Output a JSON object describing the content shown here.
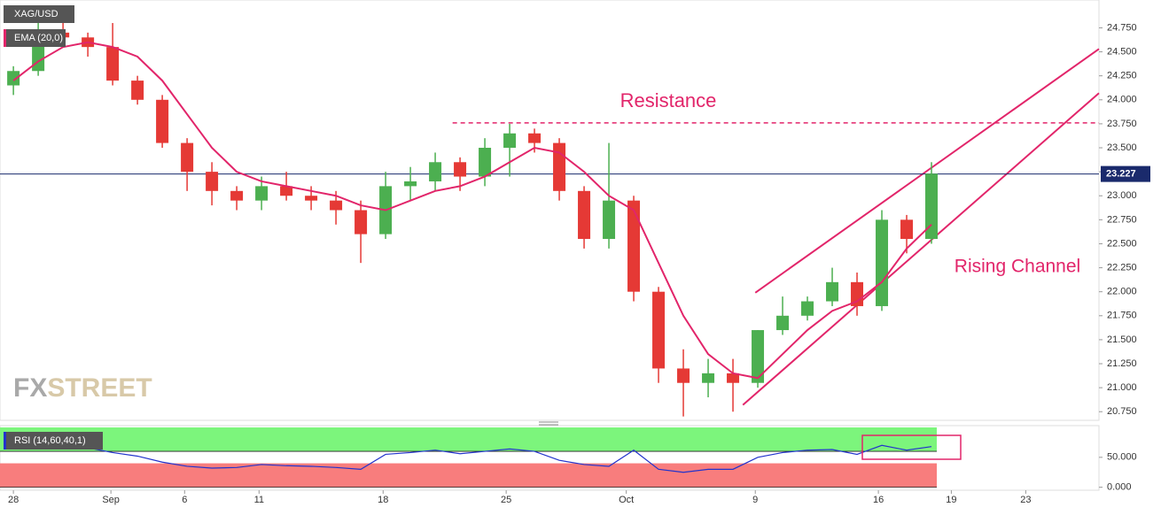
{
  "chart_data": [
    {
      "type": "candlestick",
      "name": "XAG/USD",
      "x": [
        0,
        1,
        2,
        3,
        4,
        5,
        6,
        7,
        8,
        9,
        10,
        11,
        12,
        13,
        14,
        15,
        16,
        17,
        18,
        19,
        20,
        21,
        22,
        23,
        24,
        25,
        26,
        27,
        28,
        29,
        30,
        31,
        32,
        33,
        34,
        35,
        36,
        37
      ],
      "open": [
        24.15,
        24.3,
        24.7,
        24.65,
        24.55,
        24.2,
        24.0,
        23.55,
        23.25,
        23.05,
        22.95,
        23.1,
        23.0,
        22.95,
        22.85,
        22.6,
        23.1,
        23.15,
        23.35,
        23.2,
        23.5,
        23.65,
        23.55,
        23.05,
        22.55,
        22.95,
        22.0,
        21.2,
        21.05,
        21.15,
        21.05,
        21.6,
        21.75,
        21.9,
        22.1,
        21.85,
        22.75,
        22.55
      ],
      "high": [
        24.35,
        24.8,
        24.95,
        24.7,
        24.8,
        24.25,
        24.05,
        23.6,
        23.35,
        23.1,
        23.2,
        23.25,
        23.1,
        23.05,
        22.95,
        23.25,
        23.3,
        23.45,
        23.4,
        23.6,
        23.75,
        23.7,
        23.6,
        23.1,
        23.55,
        23.0,
        22.05,
        21.4,
        21.3,
        21.3,
        21.6,
        21.95,
        21.95,
        22.25,
        22.2,
        22.85,
        22.8,
        23.35
      ],
      "low": [
        24.05,
        24.25,
        24.55,
        24.45,
        24.15,
        23.95,
        23.5,
        23.05,
        22.9,
        22.85,
        22.85,
        22.95,
        22.85,
        22.7,
        22.3,
        22.55,
        22.95,
        23.05,
        23.05,
        23.1,
        23.2,
        23.45,
        22.95,
        22.45,
        22.45,
        21.9,
        21.05,
        20.7,
        20.9,
        20.75,
        21.0,
        21.55,
        21.7,
        21.85,
        21.75,
        21.8,
        22.4,
        22.5
      ],
      "close": [
        24.3,
        24.7,
        24.65,
        24.55,
        24.2,
        24.0,
        23.55,
        23.25,
        23.05,
        22.95,
        23.1,
        23.0,
        22.95,
        22.85,
        22.6,
        23.1,
        23.15,
        23.35,
        23.2,
        23.5,
        23.65,
        23.55,
        23.05,
        22.55,
        22.95,
        22.0,
        21.2,
        21.05,
        21.15,
        21.05,
        21.6,
        21.75,
        21.9,
        22.1,
        21.85,
        22.75,
        22.55,
        23.23
      ],
      "up_color": "#4caf50",
      "down_color": "#e53935",
      "ema": {
        "name": "EMA (20,0)",
        "color": "#e2256a",
        "values": [
          24.2,
          24.4,
          24.55,
          24.6,
          24.55,
          24.45,
          24.2,
          23.85,
          23.5,
          23.25,
          23.15,
          23.1,
          23.05,
          23.0,
          22.9,
          22.85,
          22.95,
          23.05,
          23.1,
          23.2,
          23.35,
          23.5,
          23.45,
          23.25,
          23.0,
          22.85,
          22.3,
          21.75,
          21.35,
          21.15,
          21.1,
          21.35,
          21.6,
          21.8,
          21.9,
          22.1,
          22.45,
          22.7
        ]
      },
      "last_price": {
        "value": 23.227,
        "label": "23.227"
      },
      "xlim": [
        -0.54,
        43.75
      ],
      "ylim": [
        20.66,
        25.04
      ],
      "xticks": [
        {
          "value": 0,
          "label": "28"
        },
        {
          "value": 3.93,
          "label": "Sep"
        },
        {
          "value": 6.9,
          "label": "6"
        },
        {
          "value": 9.9,
          "label": "11"
        },
        {
          "value": 14.9,
          "label": "18"
        },
        {
          "value": 19.86,
          "label": "25"
        },
        {
          "value": 24.7,
          "label": "Oct"
        },
        {
          "value": 29.9,
          "label": "9"
        },
        {
          "value": 34.86,
          "label": "16"
        },
        {
          "value": 37.8,
          "label": "19"
        },
        {
          "value": 40.8,
          "label": "23"
        }
      ],
      "yticks": [
        {
          "value": 20.75,
          "label": "20.750"
        },
        {
          "value": 21,
          "label": "21.000"
        },
        {
          "value": 21.25,
          "label": "21.250"
        },
        {
          "value": 21.5,
          "label": "21.500"
        },
        {
          "value": 21.75,
          "label": "21.750"
        },
        {
          "value": 22,
          "label": "22.000"
        },
        {
          "value": 22.25,
          "label": "22.250"
        },
        {
          "value": 22.5,
          "label": "22.500"
        },
        {
          "value": 22.75,
          "label": "22.750"
        },
        {
          "value": 23,
          "label": "23.000"
        },
        {
          "value": 23.25,
          "label": "23.250"
        },
        {
          "value": 23.5,
          "label": "23.500"
        },
        {
          "value": 23.75,
          "label": "23.750"
        },
        {
          "value": 24,
          "label": "24.000"
        },
        {
          "value": 24.25,
          "label": "24.250"
        },
        {
          "value": 24.5,
          "label": "24.500"
        },
        {
          "value": 24.75,
          "label": "24.750"
        }
      ],
      "annotation_color": "#e2256a",
      "resistance": {
        "text": "Resistance",
        "y": 23.76,
        "x": [
          17.7,
          43.75
        ]
      },
      "channel": {
        "text": "Rising Channel",
        "upper": {
          "x": [
            29.9,
            43.75
          ],
          "y": [
            21.99,
            24.53
          ]
        },
        "lower": {
          "x": [
            29.4,
            43.75
          ],
          "y": [
            20.82,
            24.07
          ]
        }
      },
      "watermark": [
        "FX",
        "STREET"
      ]
    },
    {
      "type": "line",
      "name": "RSI (14,60,40,1)",
      "color": "#2233cc",
      "values": [
        65,
        70,
        72,
        66,
        58,
        52,
        42,
        35,
        32,
        33,
        38,
        36,
        35,
        33,
        30,
        55,
        58,
        62,
        56,
        60,
        64,
        60,
        45,
        38,
        35,
        62,
        30,
        25,
        30,
        30,
        50,
        58,
        62,
        63,
        55,
        70,
        62,
        68
      ],
      "ylim": [
        -5,
        103
      ],
      "yticks": [
        {
          "value": 0,
          "label": "0.000"
        },
        {
          "value": 50,
          "label": "50.000"
        }
      ],
      "zones": [
        {
          "from": 60,
          "to": 100,
          "color": "#7cf57c"
        },
        {
          "from": 0,
          "to": 40,
          "color": "#f87d7d"
        }
      ]
    }
  ]
}
